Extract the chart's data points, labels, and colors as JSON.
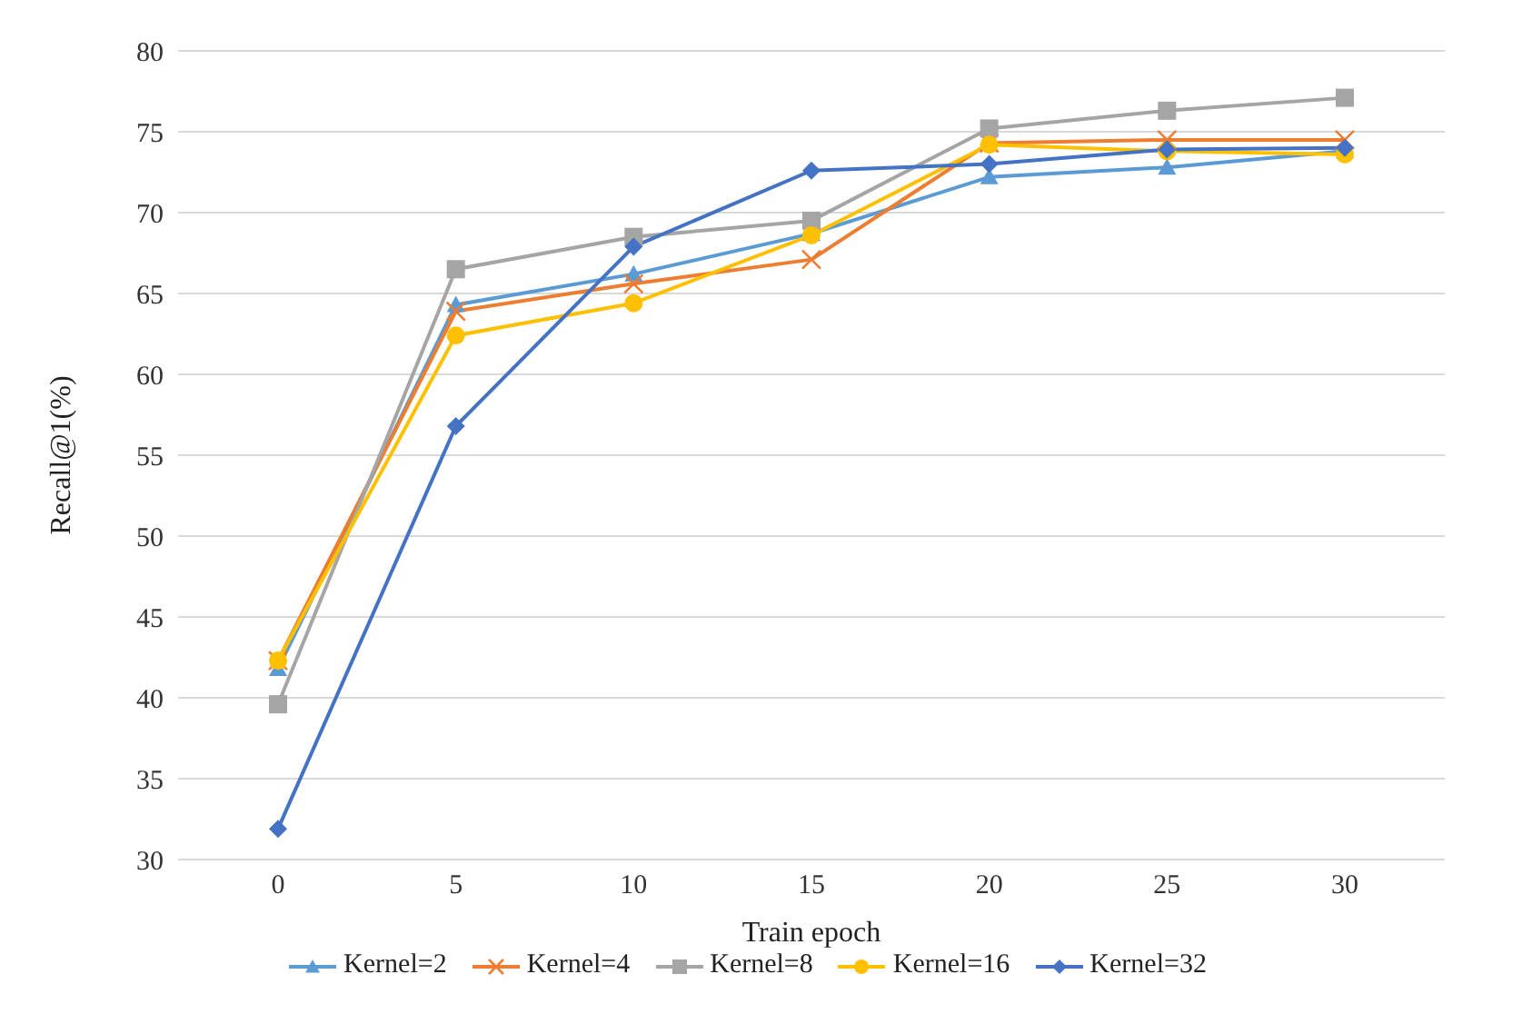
{
  "chart_data": {
    "type": "line",
    "xlabel": "Train epoch",
    "ylabel": "Recall@1(%)",
    "categories": [
      "0",
      "5",
      "10",
      "15",
      "20",
      "25",
      "30"
    ],
    "ylim": [
      30,
      80
    ],
    "yticks": [
      30,
      35,
      40,
      45,
      50,
      55,
      60,
      65,
      70,
      75,
      80
    ],
    "grid": "y",
    "legend": "bottom",
    "series": [
      {
        "name": "Kernel=2",
        "color": "#5b9bd5",
        "marker": "triangle",
        "values": [
          41.8,
          64.3,
          66.2,
          68.7,
          72.2,
          72.8,
          73.8
        ]
      },
      {
        "name": "Kernel=4",
        "color": "#ed7d31",
        "marker": "cross",
        "values": [
          42.3,
          63.9,
          65.6,
          67.1,
          74.3,
          74.5,
          74.5
        ]
      },
      {
        "name": "Kernel=8",
        "color": "#a5a5a5",
        "marker": "square",
        "values": [
          39.6,
          66.5,
          68.5,
          69.5,
          75.2,
          76.3,
          77.1
        ]
      },
      {
        "name": "Kernel=16",
        "color": "#ffc000",
        "marker": "circle",
        "values": [
          42.3,
          62.4,
          64.4,
          68.6,
          74.2,
          73.8,
          73.6
        ]
      },
      {
        "name": "Kernel=32",
        "color": "#4472c4",
        "marker": "diamond",
        "values": [
          31.9,
          56.8,
          67.9,
          72.6,
          73.0,
          73.9,
          74.0
        ]
      }
    ]
  }
}
